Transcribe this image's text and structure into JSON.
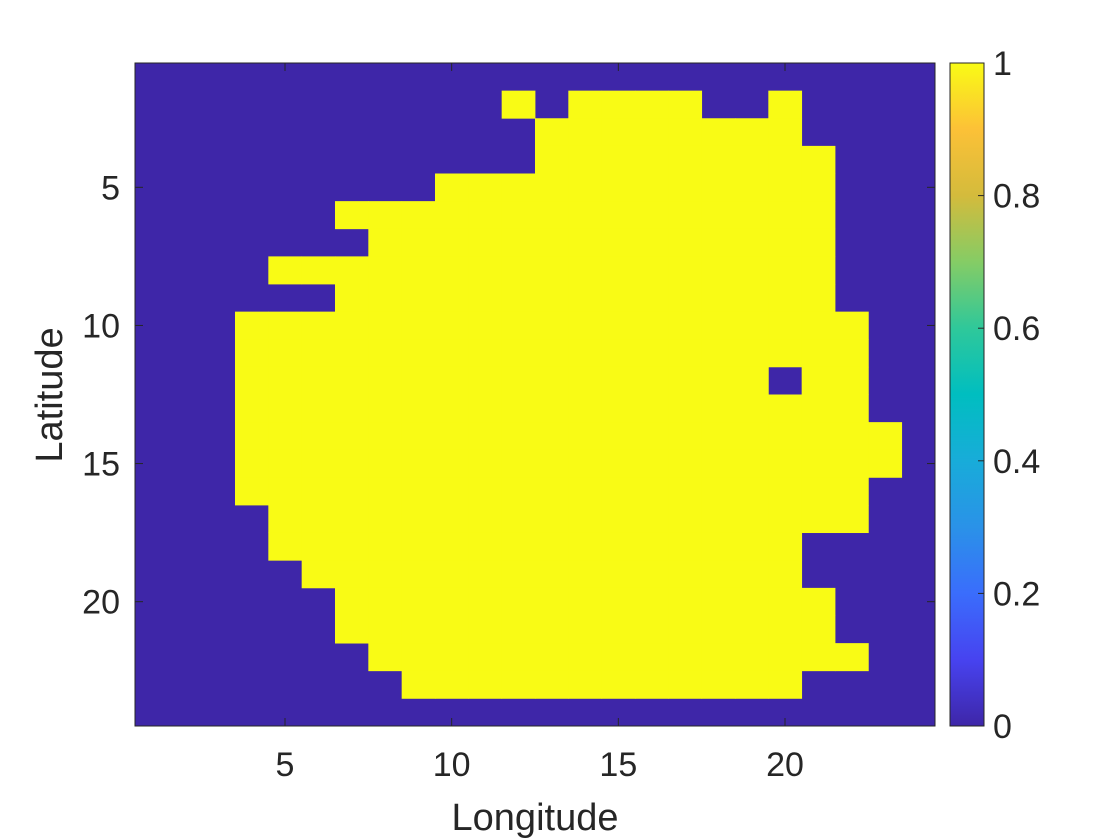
{
  "chart_data": {
    "type": "heatmap",
    "xlabel": "Longitude",
    "ylabel": "Latitude",
    "xlim": [
      0.5,
      24.5
    ],
    "ylim": [
      0.5,
      24.5
    ],
    "y_direction": "reversed",
    "x_ticks": [
      5,
      10,
      15,
      20
    ],
    "y_ticks": [
      5,
      10,
      15,
      20
    ],
    "grid": false,
    "colormap": "parula",
    "colorbar": {
      "location": "right",
      "limits": [
        0,
        1
      ],
      "ticks": [
        0,
        0.2,
        0.4,
        0.6,
        0.8,
        1
      ],
      "tick_labels": [
        "0",
        "0.2",
        "0.4",
        "0.6",
        "0.8",
        "1"
      ]
    },
    "color_low": "#3E26A8",
    "color_high": "#F9FB15",
    "rows": [
      "000000000000000000000000",
      "000000000001011110010000",
      "000000000000111111110000",
      "000000000000111111111000",
      "000000000111111111111000",
      "000000111111111111111000",
      "000000011111111111111000",
      "000011111111111111111000",
      "000000111111111111111000",
      "000111111111111111111100",
      "000111111111111111111100",
      "000111111111111111101100",
      "000111111111111111111100",
      "000111111111111111111110",
      "000111111111111111111110",
      "000111111111111111111100",
      "000011111111111111111100",
      "000011111111111111110000",
      "000001111111111111110000",
      "000000111111111111111000",
      "000000111111111111111000",
      "000000011111111111111100",
      "000000001111111111110000",
      "000000000000000000000000"
    ]
  }
}
